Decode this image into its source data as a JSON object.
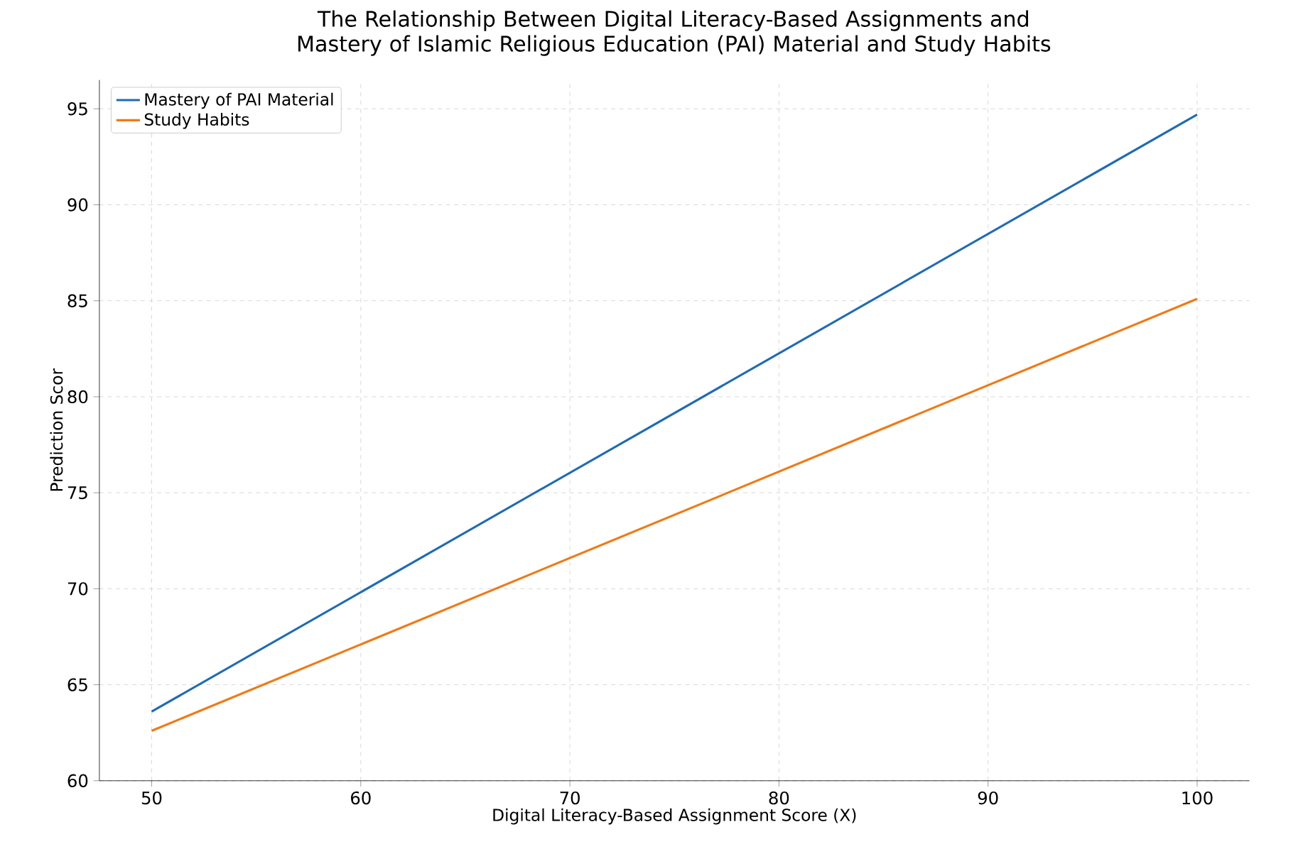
{
  "chart_data": {
    "type": "line",
    "title": "The Relationship Between Digital Literacy-Based Assignments and Mastery of Islamic Religious Education (PAI) Material and Study Habits",
    "xlabel": "Digital Literacy-Based Assignment Score (X)",
    "ylabel": "Prediction Scor",
    "x": [
      50,
      100
    ],
    "series": [
      {
        "name": "Mastery of PAI Material",
        "color": "#1f6bb4",
        "values": [
          63.6,
          94.7
        ]
      },
      {
        "name": "Study Habits",
        "color": "#f07a14",
        "values": [
          62.6,
          85.1
        ]
      }
    ],
    "xlim": [
      47.5,
      102.5
    ],
    "ylim": [
      60,
      96.5
    ],
    "xticks": [
      50,
      60,
      70,
      80,
      90,
      100
    ],
    "yticks": [
      60,
      65,
      70,
      75,
      80,
      85,
      90,
      95
    ],
    "grid": true,
    "legend": "top left",
    "marker": "none",
    "line_style": "solid"
  }
}
